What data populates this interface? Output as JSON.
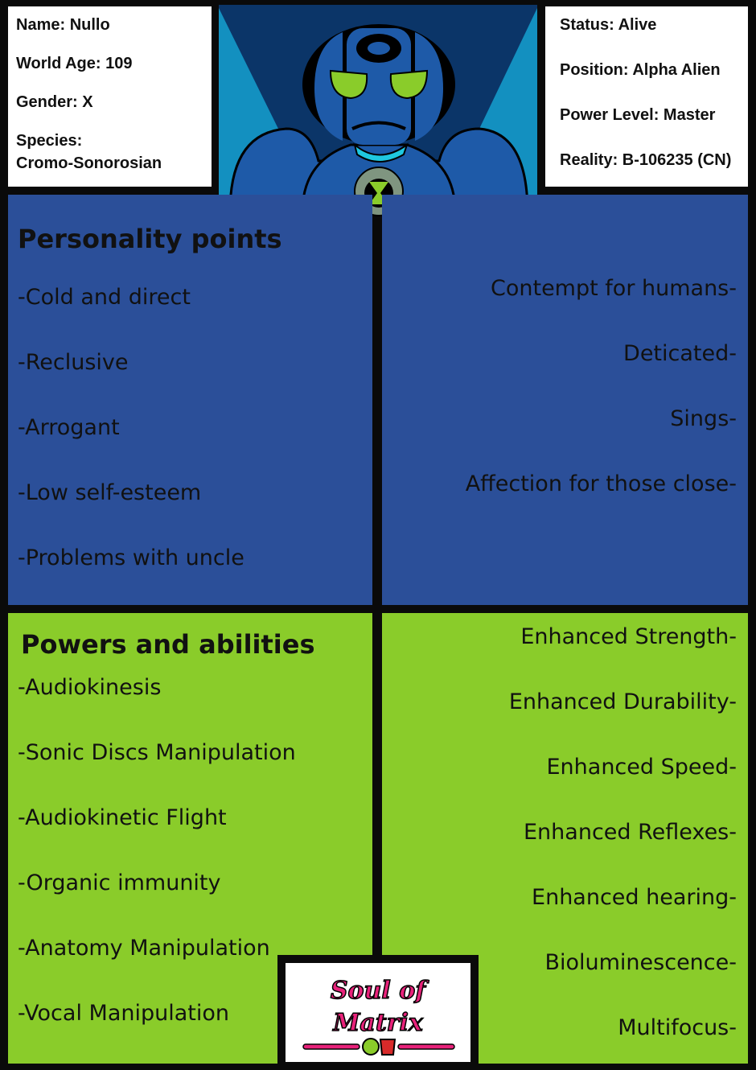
{
  "info_left": {
    "name": "Name: Nullo",
    "world_age": "World Age: 109",
    "gender": "Gender: X",
    "species_label": "Species:",
    "species_value": "Cromo-Sonorosian"
  },
  "info_right": {
    "status": "Status: Alive",
    "position": "Position: Alpha Alien",
    "power_level": "Power Level: Master",
    "reality": "Reality: B-106235 (CN)"
  },
  "personality": {
    "title": "Personality points",
    "left": [
      "-Cold and direct",
      "-Reclusive",
      "-Arrogant",
      "-Low self-esteem",
      "-Problems with uncle"
    ],
    "right": [
      "Contempt for humans-",
      "Deticated-",
      "Sings-",
      "Affection for those close-"
    ]
  },
  "powers": {
    "title": "Powers and abilities",
    "left": [
      "-Audiokinesis",
      "-Sonic Discs Manipulation",
      "-Audiokinetic Flight",
      "-Organic immunity",
      "-Anatomy Manipulation",
      "-Vocal Manipulation"
    ],
    "right": [
      "Enhanced Strength-",
      "Enhanced Durability-",
      "Enhanced Speed-",
      "Enhanced Reflexes-",
      "Enhanced hearing-",
      "Bioluminescence-",
      "Multifocus-"
    ]
  },
  "logo": {
    "text": "Soul of Matrix"
  },
  "colors": {
    "personality_bg": "#2b4f99",
    "powers_bg": "#8acc2a",
    "logo_pink": "#e8227a"
  }
}
